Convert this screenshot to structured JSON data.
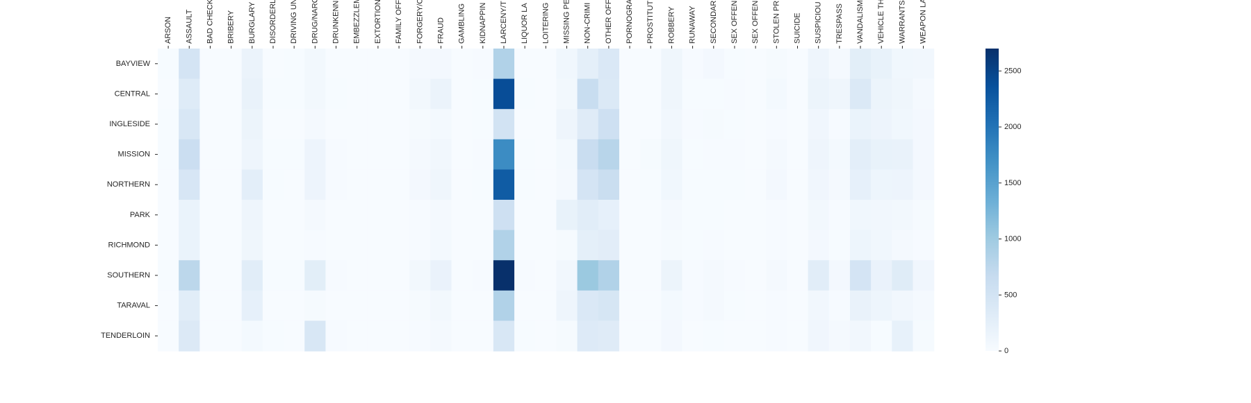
{
  "chart_data": {
    "type": "heatmap",
    "title": "",
    "xlabel": "",
    "ylabel": "",
    "colormap": "Blues",
    "colors": {
      "low": "#f7fbff",
      "high": "#08306b"
    },
    "zlim": [
      0,
      2700
    ],
    "colorbar_ticks": [
      0,
      500,
      1000,
      1500,
      2000,
      2500
    ],
    "colorbar_position": "right",
    "grid": false,
    "x_categories": [
      "ARSON",
      "ASSAULT",
      "BAD CHECK",
      "BRIBERY",
      "BURGLARY",
      "DISORDERL",
      "DRIVING UN",
      "DRUG/NARC",
      "DRUNKENN",
      "EMBEZZLEM",
      "EXTORTION",
      "FAMILY OFF",
      "FORGERY/C",
      "FRAUD",
      "GAMBLING",
      "KIDNAPPIN",
      "LARCENY/T",
      "LIQUOR LA",
      "LOITERING",
      "MISSING PE",
      "NON-CRIMI",
      "OTHER OFF",
      "PORNOGRA",
      "PROSTITUT",
      "ROBBERY",
      "RUNAWAY",
      "SECONDAR",
      "SEX OFFEN",
      "SEX OFFEN",
      "STOLEN PR",
      "SUICIDE",
      "SUSPICIOU",
      "TRESPASS",
      "VANDALISM",
      "VEHICLE TH",
      "WARRANTS",
      "WEAPON LA"
    ],
    "y_categories": [
      "BAYVIEW",
      "CENTRAL",
      "INGLESIDE",
      "MISSION",
      "NORTHERN",
      "PARK",
      "RICHMOND",
      "SOUTHERN",
      "TARAVAL",
      "TENDERLOIN"
    ],
    "values": [
      [
        10,
        480,
        4,
        2,
        160,
        6,
        8,
        70,
        5,
        2,
        2,
        5,
        35,
        60,
        1,
        15,
        850,
        5,
        5,
        90,
        260,
        400,
        2,
        2,
        110,
        20,
        60,
        10,
        5,
        25,
        5,
        120,
        40,
        280,
        200,
        90,
        80
      ],
      [
        5,
        340,
        5,
        2,
        190,
        10,
        8,
        70,
        10,
        3,
        2,
        3,
        65,
        160,
        1,
        10,
        2400,
        8,
        3,
        70,
        640,
        380,
        2,
        5,
        110,
        10,
        10,
        15,
        5,
        50,
        3,
        150,
        110,
        380,
        150,
        110,
        40
      ],
      [
        10,
        420,
        3,
        1,
        150,
        5,
        5,
        35,
        5,
        2,
        1,
        4,
        25,
        50,
        1,
        10,
        500,
        3,
        2,
        120,
        330,
        560,
        1,
        2,
        80,
        15,
        30,
        10,
        5,
        20,
        5,
        100,
        20,
        170,
        140,
        90,
        60
      ],
      [
        10,
        610,
        3,
        3,
        120,
        10,
        8,
        140,
        15,
        3,
        2,
        4,
        45,
        80,
        1,
        15,
        1750,
        10,
        5,
        50,
        630,
        790,
        5,
        25,
        110,
        10,
        20,
        12,
        5,
        40,
        3,
        120,
        50,
        270,
        200,
        190,
        60
      ],
      [
        5,
        440,
        4,
        2,
        270,
        8,
        6,
        140,
        12,
        3,
        2,
        4,
        55,
        110,
        1,
        10,
        2250,
        8,
        5,
        40,
        480,
        620,
        2,
        10,
        90,
        10,
        10,
        10,
        5,
        55,
        3,
        100,
        40,
        230,
        130,
        140,
        60
      ],
      [
        5,
        170,
        2,
        1,
        120,
        5,
        5,
        40,
        5,
        2,
        1,
        2,
        20,
        40,
        1,
        5,
        560,
        3,
        3,
        200,
        300,
        230,
        1,
        1,
        40,
        10,
        10,
        5,
        5,
        15,
        3,
        70,
        20,
        90,
        80,
        70,
        30
      ],
      [
        5,
        170,
        2,
        1,
        110,
        5,
        5,
        15,
        5,
        2,
        1,
        3,
        20,
        50,
        1,
        5,
        850,
        3,
        2,
        30,
        250,
        290,
        1,
        1,
        30,
        8,
        15,
        5,
        5,
        15,
        3,
        60,
        10,
        130,
        90,
        40,
        20
      ],
      [
        10,
        760,
        5,
        3,
        300,
        10,
        10,
        280,
        15,
        5,
        2,
        5,
        70,
        180,
        2,
        15,
        2700,
        15,
        5,
        80,
        1030,
        850,
        3,
        5,
        150,
        20,
        40,
        15,
        5,
        45,
        5,
        300,
        60,
        480,
        180,
        320,
        100
      ],
      [
        5,
        300,
        3,
        1,
        230,
        5,
        5,
        30,
        5,
        2,
        1,
        3,
        25,
        70,
        1,
        5,
        850,
        3,
        2,
        120,
        400,
        450,
        1,
        1,
        50,
        20,
        40,
        10,
        5,
        15,
        3,
        80,
        20,
        190,
        130,
        80,
        40
      ],
      [
        5,
        370,
        3,
        2,
        50,
        8,
        5,
        420,
        15,
        2,
        1,
        2,
        15,
        40,
        2,
        5,
        420,
        8,
        5,
        30,
        350,
        330,
        1,
        5,
        60,
        5,
        10,
        5,
        3,
        20,
        3,
        100,
        45,
        80,
        10,
        210,
        30
      ]
    ]
  }
}
